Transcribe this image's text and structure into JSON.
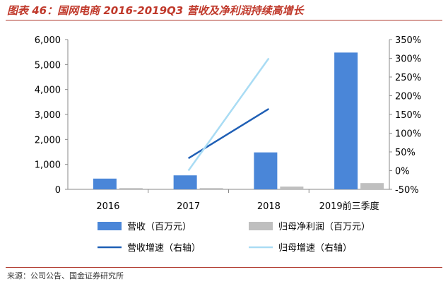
{
  "title": "图表 46：国网电商 2016-2019Q3 营收及净利润持续高增长",
  "source": "来源：公司公告、国金证券研究所",
  "chart_data": {
    "type": "bar",
    "categories": [
      "2016",
      "2017",
      "2018",
      "2019前三季度"
    ],
    "left_axis": {
      "min": 0,
      "max": 6000,
      "ticks": [
        "0",
        "1,000",
        "2,000",
        "3,000",
        "4,000",
        "5,000",
        "6,000"
      ]
    },
    "right_axis": {
      "min": -50,
      "max": 350,
      "ticks": [
        "-50%",
        "0%",
        "50%",
        "100%",
        "150%",
        "200%",
        "250%",
        "300%",
        "350%"
      ]
    },
    "series": [
      {
        "name": "营收（百万元）",
        "kind": "bar",
        "axis": "left",
        "color": "#4a86d8",
        "values": [
          430,
          560,
          1480,
          5480
        ]
      },
      {
        "name": "归母净利润（百万元）",
        "kind": "bar",
        "axis": "left",
        "color": "#bfbfbf",
        "values": [
          50,
          50,
          110,
          250
        ]
      },
      {
        "name": "营收增速（右轴）",
        "kind": "line",
        "axis": "right",
        "color": "#1f5fb5",
        "values": [
          null,
          33,
          165,
          null
        ]
      },
      {
        "name": "归母增速（右轴）",
        "kind": "line",
        "axis": "right",
        "color": "#a9dcf4",
        "values": [
          null,
          0,
          300,
          null
        ]
      }
    ],
    "legend_position": "bottom",
    "grid": false
  }
}
